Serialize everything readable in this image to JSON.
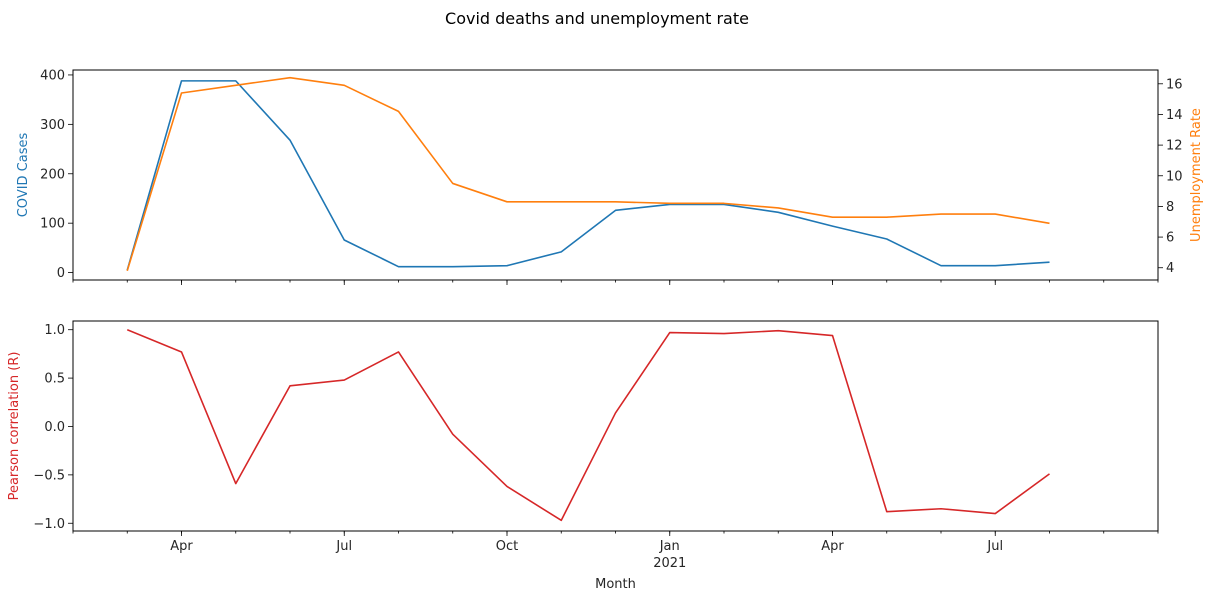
{
  "figure": {
    "title": "Covid deaths and unemployment rate"
  },
  "chart_data": [
    {
      "type": "line",
      "x": [
        "2020-03",
        "2020-04",
        "2020-05",
        "2020-06",
        "2020-07",
        "2020-08",
        "2020-09",
        "2020-10",
        "2020-11",
        "2020-12",
        "2021-01",
        "2021-02",
        "2021-03",
        "2021-04",
        "2021-05",
        "2021-06",
        "2021-07",
        "2021-08"
      ],
      "xlim": [
        "2020-02",
        "2021-10"
      ],
      "series": [
        {
          "name": "COVID Cases",
          "axis": "left",
          "color": "#1f77b4",
          "values": [
            5,
            388,
            388,
            268,
            66,
            12,
            12,
            14,
            42,
            126,
            138,
            138,
            122,
            94,
            68,
            14,
            14,
            21
          ]
        },
        {
          "name": "Unemployment Rate",
          "axis": "right",
          "color": "#ff7f0e",
          "values": [
            3.8,
            15.4,
            15.9,
            16.4,
            15.9,
            14.2,
            9.5,
            8.3,
            8.3,
            8.3,
            8.2,
            8.2,
            7.9,
            7.3,
            7.3,
            7.5,
            7.5,
            6.9
          ]
        }
      ],
      "ylabel": "COVID Cases",
      "ylabel_color": "#1f77b4",
      "ylim": [
        -15,
        410
      ],
      "yticks": [
        0,
        100,
        200,
        300,
        400
      ],
      "y2label": "Unemployment Rate",
      "y2label_color": "#ff7f0e",
      "y2lim": [
        3.2,
        16.9
      ],
      "y2ticks": [
        4,
        6,
        8,
        10,
        12,
        14,
        16
      ],
      "show_x_tick_labels": false,
      "grid": false
    },
    {
      "type": "line",
      "x": [
        "2020-03",
        "2020-04",
        "2020-05",
        "2020-06",
        "2020-07",
        "2020-08",
        "2020-09",
        "2020-10",
        "2020-11",
        "2020-12",
        "2021-01",
        "2021-02",
        "2021-03",
        "2021-04",
        "2021-05",
        "2021-06",
        "2021-07",
        "2021-08"
      ],
      "xlim": [
        "2020-02",
        "2021-10"
      ],
      "series": [
        {
          "name": "Pearson correlation (R)",
          "color": "#d62728",
          "values": [
            1.0,
            0.77,
            -0.59,
            0.42,
            0.48,
            0.77,
            -0.08,
            -0.62,
            -0.97,
            0.14,
            0.97,
            0.96,
            0.99,
            0.94,
            -0.88,
            -0.85,
            -0.9,
            -0.49
          ]
        }
      ],
      "ylabel": "Pearson correlation (R)",
      "ylabel_color": "#d62728",
      "ylim": [
        -1.08,
        1.09
      ],
      "yticks": [
        -1.0,
        -0.5,
        0.0,
        0.5,
        1.0
      ],
      "ytick_labels": [
        "−1.0",
        "−0.5",
        "0.0",
        "0.5",
        "1.0"
      ],
      "xticks": [
        "2020-04",
        "2020-07",
        "2020-10",
        "2021-01",
        "2021-04",
        "2021-07"
      ],
      "xtick_labels": [
        "Apr",
        "Jul",
        "Oct",
        "Jan",
        "Apr",
        "Jul"
      ],
      "xtick_sublabels": [
        "",
        "",
        "",
        "2021",
        "",
        ""
      ],
      "xlabel": "Month",
      "grid": false
    }
  ]
}
